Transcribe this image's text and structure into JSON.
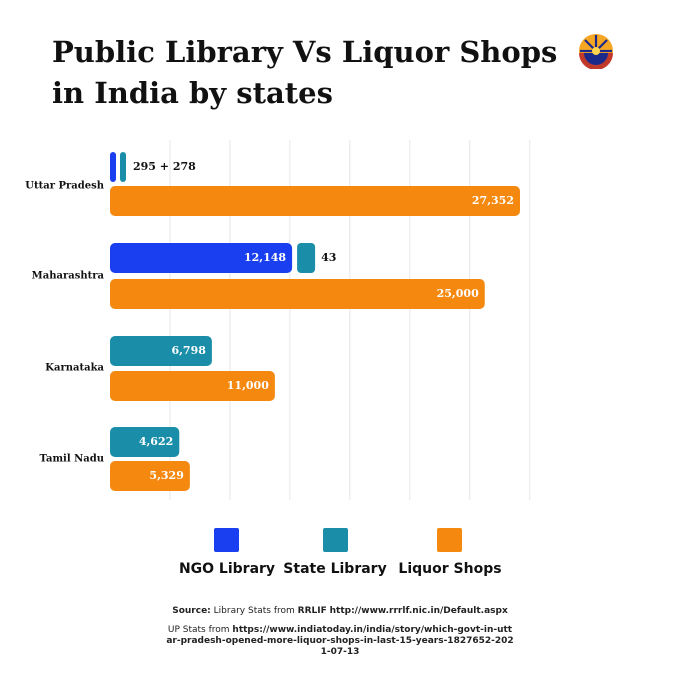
{
  "header": {
    "title_line1": "Public Library Vs Liquor Shops",
    "title_line2": "in India by states"
  },
  "colors": {
    "ngo": "#1a3ff0",
    "state": "#1a8ea8",
    "liquor": "#f5880f",
    "grid": "#e6e6e6",
    "text": "#111111"
  },
  "chart_data": {
    "type": "bar",
    "orientation": "horizontal",
    "categories": [
      "Uttar Pradesh",
      "Maharashtra",
      "Karnataka",
      "Tamil Nadu"
    ],
    "series": [
      {
        "name": "NGO Library",
        "values": [
          295,
          12148,
          null,
          null
        ]
      },
      {
        "name": "State Library",
        "values": [
          278,
          43,
          6798,
          4622
        ]
      },
      {
        "name": "Liquor Shops",
        "values": [
          27352,
          25000,
          11000,
          5329
        ]
      }
    ],
    "labels": {
      "Uttar Pradesh": {
        "library": "295 + 278",
        "liquor": "27,352"
      },
      "Maharashtra": {
        "ngo": "12,148",
        "state": "43",
        "liquor": "25,000"
      },
      "Karnataka": {
        "state": "6,798",
        "liquor": "11,000"
      },
      "Tamil Nadu": {
        "state": "4,622",
        "liquor": "5,329"
      }
    },
    "xlim": [
      0,
      32000
    ],
    "grid": true,
    "legend_position": "bottom"
  },
  "legend": {
    "items": [
      {
        "label": "NGO Library",
        "color": "#1a3ff0"
      },
      {
        "label": "State Library",
        "color": "#1a8ea8"
      },
      {
        "label": "Liquor Shops",
        "color": "#f5880f"
      }
    ]
  },
  "source": {
    "label": "Source:",
    "text1": "Library Stats from",
    "org": "RRLIF",
    "url1": "http://www.rrrlf.nic.in/Default.aspx",
    "text2": "UP Stats from",
    "url2": "https://www.indiatoday.in/india/story/which-govt-in-uttar-pradesh-opened-more-liquor-shops-in-last-15-years-1827652-2021-07-13"
  }
}
